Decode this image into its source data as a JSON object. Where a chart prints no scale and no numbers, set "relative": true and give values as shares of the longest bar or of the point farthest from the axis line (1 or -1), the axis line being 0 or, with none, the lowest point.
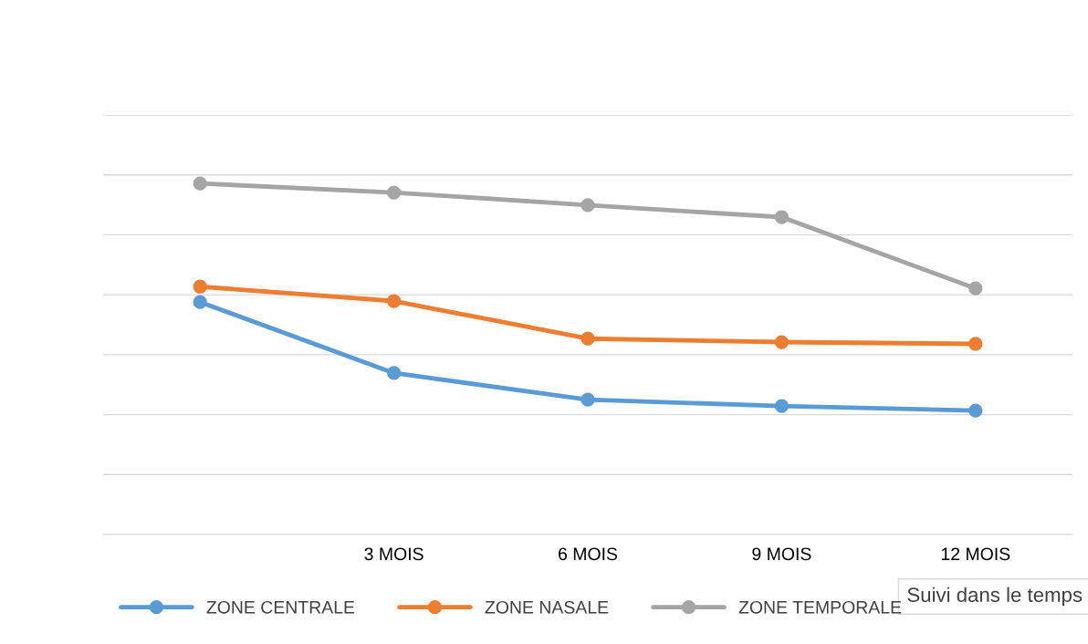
{
  "chart_data": {
    "type": "line",
    "relative": true,
    "xlabel": "Suivi dans le temps",
    "categories": [
      null,
      "3 MOIS",
      "6 MOIS",
      "9 MOIS",
      "12 MOIS"
    ],
    "series": [
      {
        "name": "ZONE CENTRALE",
        "color": "#5b9bd5",
        "values": [
          0.662,
          0.46,
          0.384,
          0.366,
          0.353
        ]
      },
      {
        "name": "ZONE NASALE",
        "color": "#ed7d31",
        "values": [
          0.706,
          0.665,
          0.558,
          0.548,
          0.543
        ]
      },
      {
        "name": "ZONE TEMPORALE",
        "color": "#a5a5a5",
        "values": [
          1,
          0.974,
          0.938,
          0.904,
          0.701
        ]
      }
    ],
    "grid": "y",
    "legend": "bottom left",
    "marker": "circle",
    "line_style": "solid"
  }
}
